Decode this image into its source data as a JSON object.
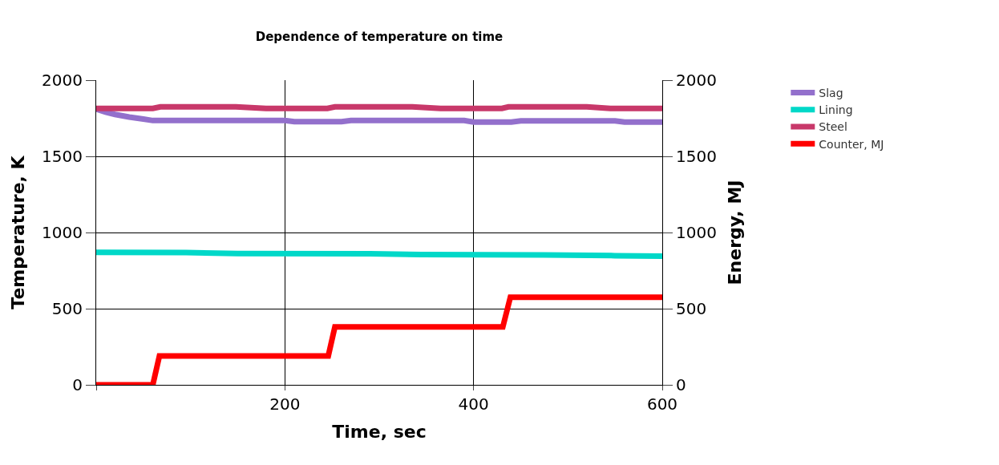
{
  "chart_data": {
    "type": "line",
    "title": "Dependence of temperature on time",
    "xlabel": "Time, sec",
    "ylabel": "Temperature, K",
    "y2label": "Energy, MJ",
    "xlim": [
      0,
      600
    ],
    "xticks": [
      {
        "value": 0,
        "label": null
      },
      200,
      400,
      600
    ],
    "ylim": [
      0,
      2000
    ],
    "yticks": [
      0,
      500,
      1000,
      1500,
      2000
    ],
    "y2lim": [
      0,
      2000
    ],
    "y2ticks": [
      0,
      500,
      1000,
      1500,
      2000
    ],
    "grid": true,
    "legend": "top right",
    "marker": "none",
    "line_style": "solid",
    "series": [
      {
        "name": "Slag",
        "color": "#9370cc",
        "x": [
          0,
          10,
          20,
          35,
          50,
          60,
          200,
          210,
          260,
          270,
          390,
          400,
          440,
          450,
          550,
          560,
          600
        ],
        "values": [
          1810,
          1790,
          1775,
          1758,
          1745,
          1735,
          1735,
          1728,
          1728,
          1735,
          1735,
          1725,
          1725,
          1733,
          1733,
          1725,
          1725
        ]
      },
      {
        "name": "Lining",
        "color": "#00d8c8",
        "x": [
          0,
          95,
          150,
          290,
          345,
          475,
          550,
          600
        ],
        "values": [
          870,
          868,
          862,
          860,
          855,
          852,
          848,
          845
        ]
      },
      {
        "name": "Steel",
        "color": "#c8386a",
        "x": [
          0,
          60,
          68,
          148,
          180,
          245,
          253,
          335,
          365,
          430,
          437,
          520,
          545,
          600
        ],
        "values": [
          1815,
          1815,
          1825,
          1825,
          1815,
          1815,
          1825,
          1825,
          1815,
          1815,
          1825,
          1825,
          1815,
          1815
        ]
      },
      {
        "name": "Counter, MJ",
        "color": "#ff0000",
        "axis": "y2",
        "x": [
          0,
          60,
          67,
          246,
          253,
          431,
          439,
          600
        ],
        "values": [
          0,
          0,
          190,
          190,
          380,
          380,
          575,
          575
        ]
      }
    ]
  }
}
